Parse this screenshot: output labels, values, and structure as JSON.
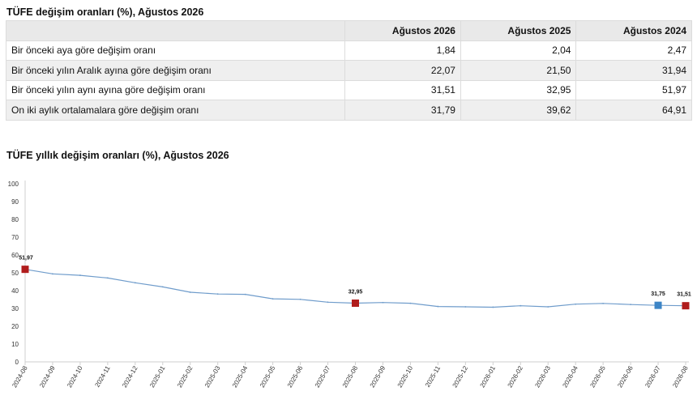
{
  "table": {
    "title": "TÜFE değişim oranları (%), Ağustos 2026",
    "headers": [
      "",
      "Ağustos 2026",
      "Ağustos 2025",
      "Ağustos 2024"
    ],
    "rows": [
      {
        "label": "Bir önceki aya göre değişim oranı",
        "values": [
          "1,84",
          "2,04",
          "2,47"
        ]
      },
      {
        "label": "Bir önceki yılın Aralık ayına göre değişim oranı",
        "values": [
          "22,07",
          "21,50",
          "31,94"
        ]
      },
      {
        "label": "Bir önceki yılın aynı ayına göre değişim oranı",
        "values": [
          "31,51",
          "32,95",
          "51,97"
        ]
      },
      {
        "label": "On iki aylık ortalamalara göre değişim oranı",
        "values": [
          "31,79",
          "39,62",
          "64,91"
        ]
      }
    ]
  },
  "chart": {
    "title": "TÜFE yıllık değişim oranları (%), Ağustos 2026"
  },
  "chart_data": {
    "type": "line",
    "title": "TÜFE yıllık değişim oranları (%), Ağustos 2026",
    "xlabel": "",
    "ylabel": "",
    "ylim": [
      0,
      100
    ],
    "yticks": [
      0,
      10,
      20,
      30,
      40,
      50,
      60,
      70,
      80,
      90,
      100
    ],
    "grid": false,
    "line_color": "#6f9ccb",
    "x": [
      "2024-08",
      "2024-09",
      "2024-10",
      "2024-11",
      "2024-12",
      "2025-01",
      "2025-02",
      "2025-03",
      "2025-04",
      "2025-05",
      "2025-06",
      "2025-07",
      "2025-08",
      "2025-09",
      "2025-10",
      "2025-11",
      "2025-12",
      "2026-01",
      "2026-02",
      "2026-03",
      "2026-04",
      "2026-05",
      "2026-06",
      "2026-07",
      "2026-08"
    ],
    "series": [
      {
        "values": [
          51.97,
          49.4,
          48.6,
          47.1,
          44.4,
          42.1,
          39.1,
          38.1,
          37.9,
          35.4,
          35.1,
          33.5,
          32.95,
          33.3,
          32.9,
          31.1,
          30.9,
          30.7,
          31.5,
          30.9,
          32.4,
          32.8,
          32.2,
          31.75,
          31.51
        ]
      }
    ],
    "markers": [
      {
        "x": "2024-08",
        "value": 51.97,
        "label": "51,97",
        "color": "#b01c1c"
      },
      {
        "x": "2025-08",
        "value": 32.95,
        "label": "32,95",
        "color": "#b01c1c"
      },
      {
        "x": "2026-07",
        "value": 31.75,
        "label": "31,75",
        "color": "#3d85c6"
      },
      {
        "x": "2026-08",
        "value": 31.51,
        "label": "31,51",
        "color": "#b01c1c"
      }
    ]
  }
}
